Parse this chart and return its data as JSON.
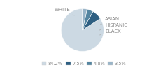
{
  "labels": [
    "WHITE",
    "ASIAN",
    "HISPANIC",
    "BLACK"
  ],
  "values": [
    84.2,
    7.5,
    4.8,
    3.5
  ],
  "colors": [
    "#ccd9e3",
    "#2e5f82",
    "#5585a0",
    "#9ab5c8"
  ],
  "legend_colors": [
    "#ccd9e3",
    "#2e5f82",
    "#5585a0",
    "#9ab5c8"
  ],
  "legend_labels": [
    "84.2%",
    "7.5%",
    "4.8%",
    "3.5%"
  ],
  "startangle": 90,
  "bg_color": "#ffffff",
  "text_color": "#888888",
  "font_size": 5.0
}
